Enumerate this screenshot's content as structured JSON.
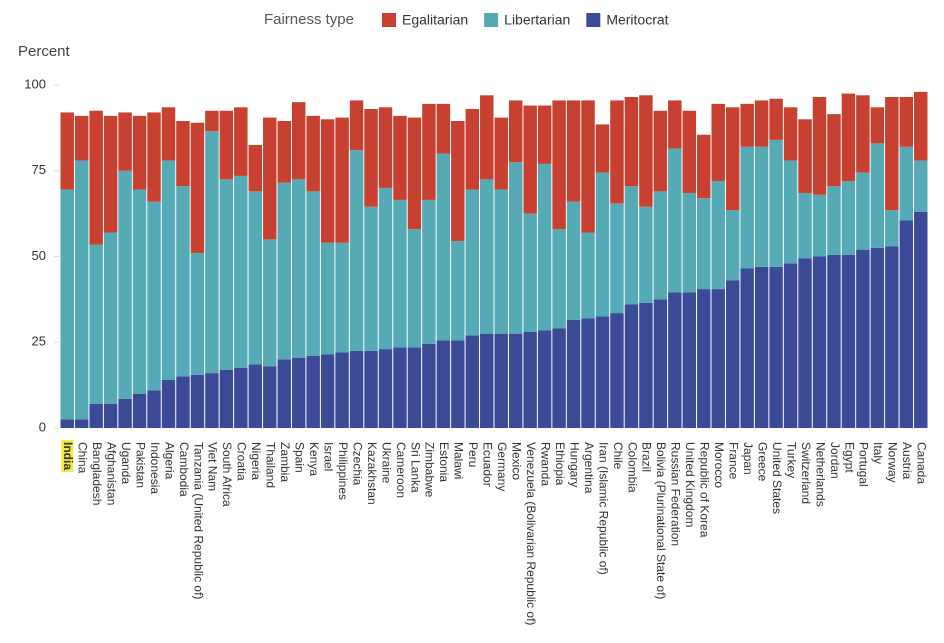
{
  "chart_data": {
    "type": "stacked_bar",
    "legend_title": "Fairness type",
    "ylabel": "Percent",
    "ylim": [
      0,
      100
    ],
    "yticks": [
      0,
      25,
      50,
      75,
      100
    ],
    "grid": false,
    "legend": "top",
    "categories": [
      "India",
      "China",
      "Bangladesh",
      "Afghanistan",
      "Uganda",
      "Pakistan",
      "Indonesia",
      "Algeria",
      "Cambodia",
      "Tanzania (United Republic of)",
      "Viet Nam",
      "South Africa",
      "Croatia",
      "Nigeria",
      "Thailand",
      "Zambia",
      "Spain",
      "Kenya",
      "Israel",
      "Philippines",
      "Czechia",
      "Kazakhstan",
      "Ukraine",
      "Cameroon",
      "Sri Lanka",
      "Zimbabwe",
      "Estonia",
      "Malawi",
      "Peru",
      "Ecuador",
      "Germany",
      "Mexico",
      "Venezuela (Bolivarian Republic of)",
      "Rwanda",
      "Ethiopia",
      "Hungary",
      "Argentina",
      "Iran (Islamic Republic of)",
      "Chile",
      "Colombia",
      "Brazil",
      "Bolivia (Plurinational State of)",
      "Russian Federation",
      "United Kingdom",
      "Republic of Korea",
      "Morocco",
      "France",
      "Japan",
      "Greece",
      "United States",
      "Turkey",
      "Switzerland",
      "Netherlands",
      "Jordan",
      "Egypt",
      "Portugal",
      "Italy",
      "Norway",
      "Austria",
      "Canada"
    ],
    "series": [
      {
        "name": "Egalitarian",
        "color": "#c8402f",
        "values": [
          22.5,
          13,
          39,
          34,
          17,
          21.5,
          26,
          15.5,
          19,
          38,
          6,
          20,
          20,
          13.5,
          35.5,
          18,
          22.5,
          22,
          36,
          36.5,
          14.5,
          28.5,
          23.5,
          24.5,
          32.5,
          28,
          14.5,
          35,
          23.5,
          24.5,
          21,
          18,
          31.5,
          17,
          37.5,
          29.5,
          38.5,
          14,
          30,
          26,
          32.5,
          23.5,
          14,
          24,
          18.5,
          22.5,
          30,
          12.5,
          13.5,
          12,
          15.5,
          21.5,
          28.5,
          21,
          25.5,
          22.5,
          10.5,
          33,
          14.5,
          20
        ]
      },
      {
        "name": "Libertarian",
        "color": "#55aab5",
        "values": [
          67,
          75.5,
          46.5,
          50,
          66.5,
          59.5,
          55,
          64,
          55.5,
          35.5,
          70.5,
          55.5,
          56,
          50.5,
          37,
          51.5,
          52,
          48,
          32.5,
          32,
          58.5,
          42,
          47,
          43,
          34.5,
          42,
          54.5,
          29,
          42.5,
          45,
          42,
          50,
          34.5,
          48.5,
          29,
          34.5,
          25,
          42,
          32,
          34.5,
          28,
          31.5,
          42,
          29,
          26.5,
          31.5,
          20.5,
          35.5,
          35,
          37,
          30,
          19,
          18,
          20,
          21.5,
          22.5,
          30.5,
          10.5,
          21.5,
          15
        ]
      },
      {
        "name": "Meritocrat",
        "color": "#3b4a96",
        "values": [
          2.5,
          2.5,
          7,
          7,
          8.5,
          10,
          11,
          14,
          15,
          15.5,
          16,
          17,
          17.5,
          18.5,
          18,
          20,
          20.5,
          21,
          21.5,
          22,
          22.5,
          22.5,
          23,
          23.5,
          23.5,
          24.5,
          25.5,
          25.5,
          27,
          27.5,
          27.5,
          27.5,
          28,
          28.5,
          29,
          31.5,
          32,
          32.5,
          33.5,
          36,
          36.5,
          37.5,
          39.5,
          39.5,
          40.5,
          40.5,
          43,
          46.5,
          47,
          47,
          48,
          49.5,
          50,
          50.5,
          50.5,
          52,
          52.5,
          53,
          60.5,
          63
        ]
      }
    ]
  }
}
